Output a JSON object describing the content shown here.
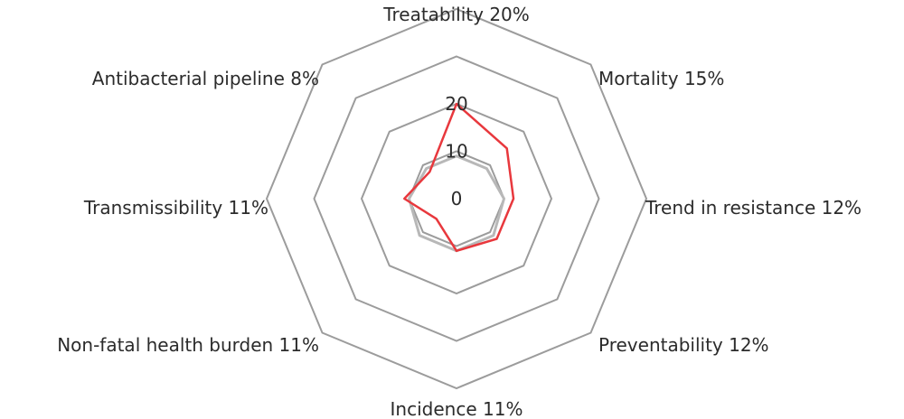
{
  "chart_data": {
    "type": "radar",
    "axes": [
      "Treatability 20%",
      "Mortality 15%",
      "Trend in resistance 12%",
      "Preventability 12%",
      "Incidence 11%",
      "Non-fatal health burden 11%",
      "Transmissibility 11%",
      "Antibacterial pipeline 8%"
    ],
    "rlim": [
      0,
      40
    ],
    "ring_values": [
      10,
      20,
      30,
      40
    ],
    "tick_labels": [
      {
        "value": 0,
        "text": "0"
      },
      {
        "value": 10,
        "text": "10"
      },
      {
        "value": 20,
        "text": "20"
      }
    ],
    "series": [
      {
        "color": "#e8383d",
        "values": [
          20,
          15,
          12,
          12,
          11,
          6,
          11,
          8
        ]
      },
      {
        "color": "#b8b8b8",
        "values": [
          9,
          9,
          10,
          11,
          11,
          11,
          10,
          9
        ]
      }
    ],
    "ring_color": "#9c9c9c",
    "grid": true,
    "legend": "none"
  }
}
